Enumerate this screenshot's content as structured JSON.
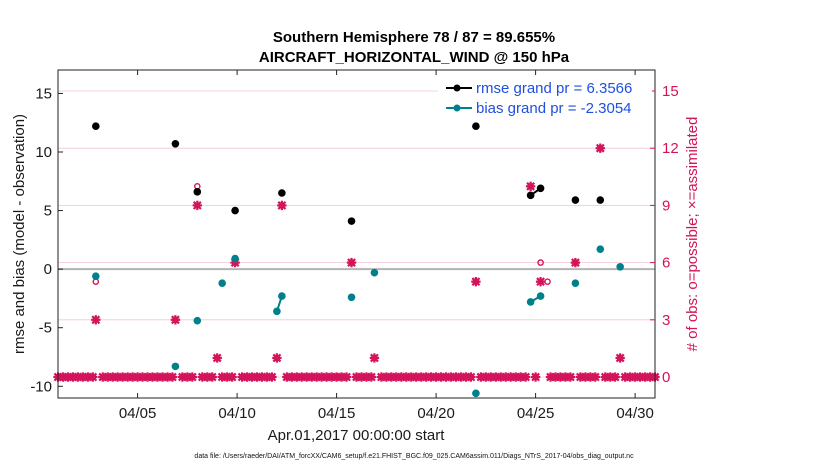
{
  "chart_data": {
    "type": "scatter",
    "title": "Southern Hemisphere 78 / 87 = 89.655%",
    "subtitle": "AIRCRAFT_HORIZONTAL_WIND @ 150 hPa",
    "xlabel": "Apr.01,2017 00:00:00 start",
    "ylabel": "rmse and bias (model - observation)",
    "y2label": "# of obs: o=possible; ×=assimilated",
    "xlim": [
      1.0,
      31.0
    ],
    "ylim": [
      -11,
      17
    ],
    "y2lim": [
      -1.1,
      16.1
    ],
    "xticks": [
      5,
      10,
      15,
      20,
      25,
      30
    ],
    "xtick_labels": [
      "04/05",
      "04/10",
      "04/15",
      "04/20",
      "04/25",
      "04/30"
    ],
    "yticks": [
      -10,
      -5,
      0,
      5,
      10,
      15
    ],
    "ytick_labels": [
      "-10",
      "-5",
      "0",
      "5",
      "10",
      "15"
    ],
    "y2ticks": [
      0,
      3,
      6,
      9,
      12,
      15
    ],
    "y2tick_labels": [
      "0",
      "3",
      "6",
      "9",
      "12",
      "15"
    ],
    "legend": [
      {
        "label": "rmse grand pr = 6.3566",
        "color": "#000000"
      },
      {
        "label": "bias grand pr = -2.3054",
        "color": "#00808a"
      }
    ],
    "legend_position": "top-right",
    "colors": {
      "rmse": "#000000",
      "bias": "#00808a",
      "obs": "#d4145a",
      "zero_line": "#b3b3b3",
      "grid": "#f2c4d2"
    },
    "series": [
      {
        "name": "rmse",
        "segments": [
          [
            [
              2.9,
              12.2
            ]
          ],
          [
            [
              6.9,
              10.7
            ]
          ],
          [
            [
              8.0,
              6.6
            ]
          ],
          [
            [
              9.9,
              5.0
            ]
          ],
          [
            [
              12.25,
              6.5
            ]
          ],
          [
            [
              15.75,
              4.1
            ]
          ],
          [
            [
              22.0,
              12.2
            ]
          ],
          [
            [
              24.75,
              6.3
            ],
            [
              25.25,
              6.9
            ]
          ],
          [
            [
              27.0,
              5.9
            ]
          ],
          [
            [
              28.25,
              5.9
            ]
          ]
        ]
      },
      {
        "name": "bias",
        "segments": [
          [
            [
              2.9,
              -0.6
            ]
          ],
          [
            [
              6.9,
              -8.3
            ]
          ],
          [
            [
              8.0,
              -4.4
            ]
          ],
          [
            [
              9.25,
              -1.2
            ]
          ],
          [
            [
              9.9,
              0.9
            ]
          ],
          [
            [
              12.0,
              -3.6
            ],
            [
              12.25,
              -2.3
            ]
          ],
          [
            [
              15.75,
              -2.4
            ]
          ],
          [
            [
              16.9,
              -0.3
            ]
          ],
          [
            [
              22.0,
              -10.6
            ]
          ],
          [
            [
              24.75,
              -2.8
            ],
            [
              25.25,
              -2.3
            ]
          ],
          [
            [
              27.0,
              -1.2
            ]
          ],
          [
            [
              28.25,
              1.7
            ]
          ],
          [
            [
              29.25,
              0.2
            ]
          ]
        ]
      },
      {
        "name": "obs_possible",
        "axis": "right",
        "points": [
          [
            2.9,
            5
          ],
          [
            6.9,
            3
          ],
          [
            8.0,
            10
          ],
          [
            9.0,
            1
          ],
          [
            9.9,
            6
          ],
          [
            12.0,
            1
          ],
          [
            12.25,
            9
          ],
          [
            15.75,
            6
          ],
          [
            16.9,
            1
          ],
          [
            22.0,
            5
          ],
          [
            24.75,
            10
          ],
          [
            25.25,
            6
          ],
          [
            25.6,
            5
          ],
          [
            27.0,
            6
          ],
          [
            28.25,
            12
          ],
          [
            29.25,
            1
          ]
        ]
      },
      {
        "name": "obs_assimilated",
        "axis": "right",
        "points": [
          [
            2.9,
            3
          ],
          [
            6.9,
            3
          ],
          [
            8.0,
            9
          ],
          [
            9.0,
            1
          ],
          [
            9.9,
            6
          ],
          [
            12.0,
            1
          ],
          [
            12.25,
            9
          ],
          [
            15.75,
            6
          ],
          [
            16.9,
            1
          ],
          [
            22.0,
            5
          ],
          [
            24.75,
            10
          ],
          [
            25.25,
            5
          ],
          [
            27.0,
            6
          ],
          [
            28.25,
            12
          ],
          [
            29.25,
            1
          ]
        ]
      }
    ],
    "obs_zero_days_step": 0.25
  },
  "footer": {
    "datafile": "data file: /Users/raeder/DAI/ATM_forcXX/CAM6_setup/f.e21.FHIST_BGC.f09_025.CAM6assim.011/Diags_NTrS_2017-04/obs_diag_output.nc"
  }
}
